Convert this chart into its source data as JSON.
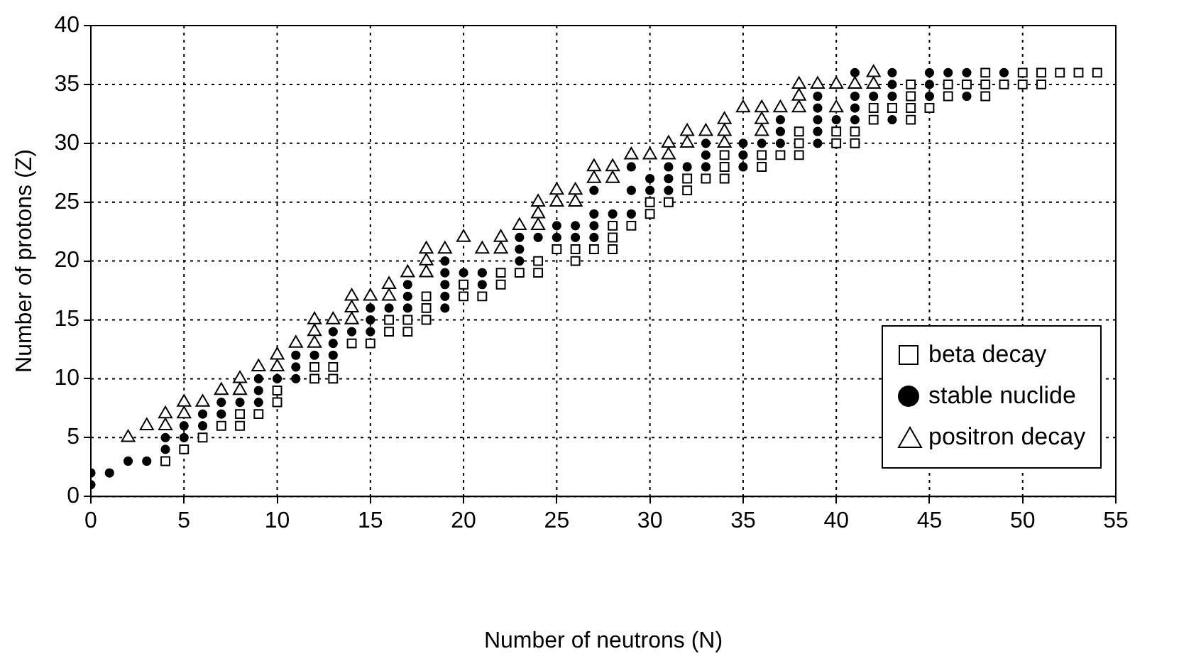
{
  "chart_data": {
    "type": "scatter",
    "xlabel": "Number of neutrons (N)",
    "ylabel": "Number of protons (Z)",
    "xlim": [
      0,
      55
    ],
    "xticks": [
      0,
      5,
      10,
      15,
      20,
      25,
      30,
      35,
      40,
      45,
      50,
      55
    ],
    "ylim": [
      0,
      40
    ],
    "yticks": [
      0,
      5,
      10,
      15,
      20,
      25,
      30,
      35,
      40
    ],
    "grid": true,
    "legend": "bottom right",
    "line_style": "dotted",
    "series": [
      {
        "name": "beta decay",
        "color": "#000000",
        "marker": "square",
        "x": [
          4,
          5,
          6,
          7,
          8,
          8,
          9,
          10,
          10,
          12,
          12,
          13,
          13,
          14,
          15,
          16,
          16,
          17,
          17,
          18,
          18,
          18,
          20,
          20,
          21,
          22,
          22,
          23,
          24,
          24,
          25,
          26,
          26,
          27,
          28,
          28,
          28,
          29,
          30,
          30,
          31,
          32,
          32,
          33,
          34,
          34,
          34,
          36,
          36,
          37,
          38,
          38,
          38,
          40,
          40,
          41,
          41,
          42,
          42,
          43,
          44,
          44,
          44,
          44,
          45,
          46,
          46,
          47,
          48,
          48,
          48,
          49,
          50,
          50,
          51,
          51,
          52,
          53,
          54
        ],
        "values": [
          3,
          4,
          5,
          6,
          6,
          7,
          7,
          8,
          9,
          10,
          11,
          10,
          11,
          13,
          13,
          14,
          15,
          14,
          15,
          15,
          16,
          17,
          17,
          18,
          17,
          18,
          19,
          19,
          19,
          20,
          21,
          20,
          21,
          21,
          21,
          22,
          23,
          23,
          24,
          25,
          25,
          26,
          27,
          27,
          27,
          28,
          29,
          28,
          29,
          29,
          29,
          30,
          31,
          30,
          31,
          30,
          31,
          32,
          33,
          33,
          32,
          33,
          34,
          35,
          33,
          34,
          35,
          35,
          34,
          35,
          36,
          35,
          35,
          36,
          35,
          36,
          36,
          36,
          36
        ]
      },
      {
        "name": "stable nuclide",
        "color": "#000000",
        "marker": "circle",
        "x": [
          0,
          0,
          1,
          2,
          3,
          4,
          4,
          5,
          5,
          6,
          6,
          7,
          7,
          8,
          9,
          9,
          9,
          10,
          11,
          11,
          11,
          12,
          13,
          13,
          13,
          14,
          15,
          15,
          15,
          16,
          17,
          17,
          17,
          19,
          19,
          19,
          19,
          19,
          20,
          21,
          21,
          23,
          23,
          23,
          24,
          25,
          25,
          26,
          26,
          27,
          27,
          27,
          27,
          28,
          29,
          29,
          29,
          30,
          30,
          31,
          31,
          31,
          32,
          33,
          33,
          33,
          35,
          35,
          35,
          36,
          37,
          37,
          37,
          39,
          39,
          39,
          39,
          39,
          40,
          41,
          41,
          41,
          41,
          42,
          43,
          43,
          43,
          43,
          45,
          45,
          45,
          46,
          47,
          47,
          49
        ],
        "values": [
          1,
          2,
          2,
          3,
          3,
          4,
          5,
          5,
          6,
          6,
          7,
          7,
          8,
          8,
          8,
          9,
          10,
          10,
          10,
          11,
          12,
          12,
          12,
          13,
          14,
          14,
          14,
          15,
          16,
          16,
          16,
          17,
          18,
          16,
          17,
          18,
          19,
          20,
          19,
          18,
          19,
          20,
          21,
          22,
          22,
          22,
          23,
          22,
          23,
          22,
          23,
          24,
          26,
          24,
          24,
          26,
          28,
          26,
          27,
          26,
          27,
          28,
          28,
          28,
          29,
          30,
          28,
          29,
          30,
          30,
          30,
          31,
          32,
          30,
          31,
          32,
          33,
          34,
          32,
          32,
          33,
          34,
          36,
          34,
          32,
          34,
          35,
          36,
          34,
          35,
          36,
          36,
          34,
          36,
          36
        ]
      },
      {
        "name": "positron decay",
        "color": "#000000",
        "marker": "triangle",
        "x": [
          2,
          3,
          4,
          4,
          5,
          5,
          6,
          7,
          8,
          8,
          9,
          10,
          10,
          11,
          12,
          12,
          12,
          13,
          14,
          14,
          14,
          15,
          16,
          16,
          17,
          18,
          18,
          18,
          19,
          20,
          21,
          22,
          22,
          23,
          24,
          24,
          24,
          25,
          25,
          26,
          26,
          27,
          27,
          28,
          28,
          29,
          30,
          31,
          31,
          32,
          32,
          33,
          34,
          34,
          34,
          35,
          36,
          36,
          36,
          37,
          38,
          38,
          38,
          39,
          40,
          40,
          41,
          42,
          42
        ],
        "values": [
          5,
          6,
          6,
          7,
          7,
          8,
          8,
          9,
          9,
          10,
          11,
          11,
          12,
          13,
          13,
          14,
          15,
          15,
          15,
          16,
          17,
          17,
          17,
          18,
          19,
          19,
          20,
          21,
          21,
          22,
          21,
          21,
          22,
          23,
          23,
          24,
          25,
          25,
          26,
          25,
          26,
          27,
          28,
          27,
          28,
          29,
          29,
          29,
          30,
          30,
          31,
          31,
          30,
          31,
          32,
          33,
          31,
          32,
          33,
          33,
          33,
          34,
          35,
          35,
          33,
          35,
          35,
          35,
          36
        ]
      }
    ]
  }
}
